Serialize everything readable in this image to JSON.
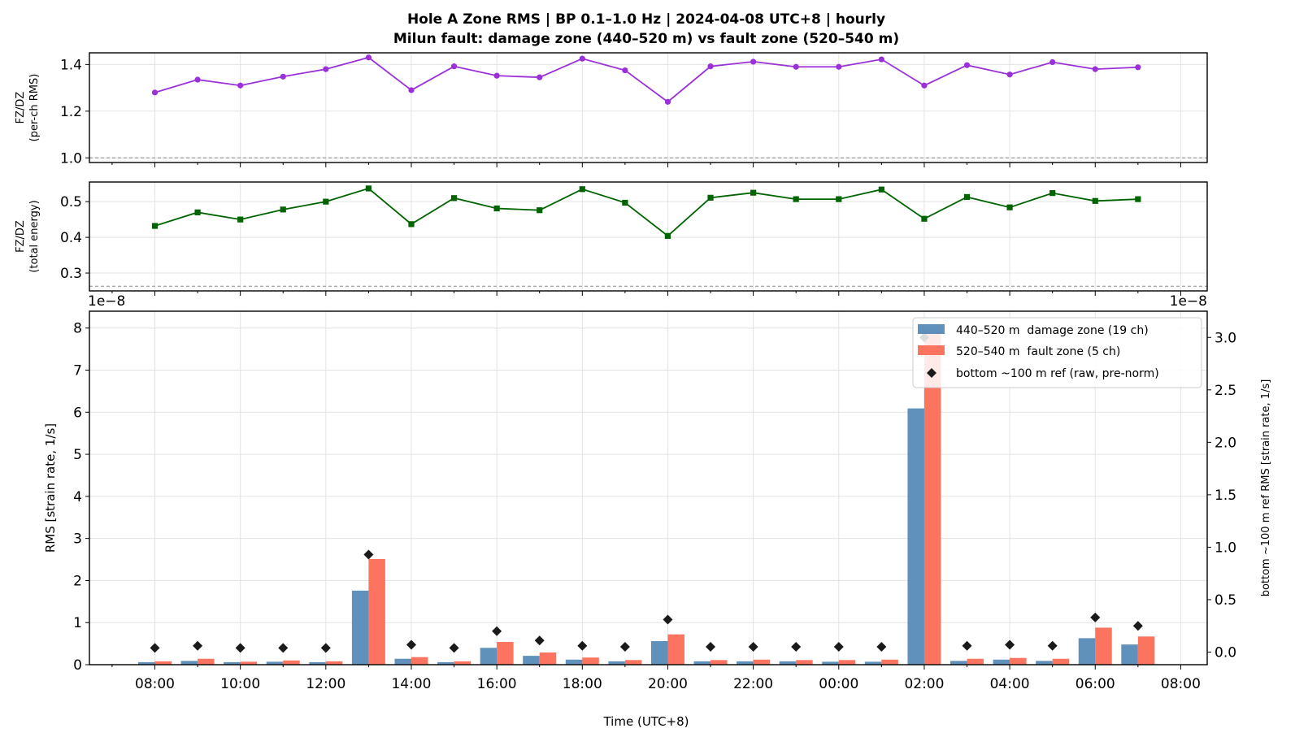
{
  "chart_data": {
    "type": "bar",
    "title_line1": "Hole A Zone RMS  |  BP 0.1–1.0 Hz  |  2024-04-08 UTC+8  |  hourly",
    "title_line2": "Milun fault: damage zone (440–520 m) vs fault zone (520–540 m)",
    "x_categories": [
      "08:00",
      "09:00",
      "10:00",
      "11:00",
      "12:00",
      "13:00",
      "14:00",
      "15:00",
      "16:00",
      "17:00",
      "18:00",
      "19:00",
      "20:00",
      "21:00",
      "22:00",
      "23:00",
      "00:00",
      "01:00",
      "02:00",
      "03:00",
      "04:00",
      "05:00",
      "06:00",
      "07:00"
    ],
    "x_tick_labels": [
      "08:00",
      "10:00",
      "12:00",
      "14:00",
      "16:00",
      "18:00",
      "20:00",
      "22:00",
      "00:00",
      "02:00",
      "04:00",
      "06:00",
      "08:00"
    ],
    "xlabel": "Time (UTC+8)",
    "panels": [
      {
        "type": "line",
        "ylabel_line1": "FZ/DZ",
        "ylabel_line2": "(per-ch RMS)",
        "color": "#9b30d9",
        "marker": "circle",
        "ylim": [
          0.98,
          1.45
        ],
        "yticks": [
          "1.0",
          "1.2",
          "1.4"
        ],
        "reference_line": 1.0,
        "values": [
          1.28,
          1.335,
          1.31,
          1.348,
          1.38,
          1.43,
          1.29,
          1.392,
          1.352,
          1.345,
          1.425,
          1.375,
          1.24,
          1.392,
          1.412,
          1.39,
          1.39,
          1.422,
          1.31,
          1.397,
          1.357,
          1.41,
          1.38,
          1.388
        ]
      },
      {
        "type": "line",
        "ylabel_line1": "FZ/DZ",
        "ylabel_line2": "(total energy)",
        "color": "#006400",
        "marker": "square",
        "ylim": [
          0.25,
          0.555
        ],
        "yticks": [
          "0.3",
          "0.4",
          "0.5"
        ],
        "reference_line": 0.263,
        "values": [
          0.432,
          0.47,
          0.45,
          0.478,
          0.5,
          0.537,
          0.437,
          0.51,
          0.481,
          0.476,
          0.535,
          0.497,
          0.404,
          0.511,
          0.525,
          0.507,
          0.507,
          0.534,
          0.452,
          0.513,
          0.484,
          0.524,
          0.502,
          0.507
        ]
      },
      {
        "type": "bar",
        "ylabel": "RMS  [strain rate, 1/s]",
        "ylabel_right": "bottom ~100 m ref RMS  [strain rate, 1/s]",
        "offset_text_left": "1e−8",
        "offset_text_right": "1e−8",
        "ylim": [
          0,
          8.4
        ],
        "yticks": [
          "0",
          "1",
          "2",
          "3",
          "4",
          "5",
          "6",
          "7",
          "8"
        ],
        "ylim_right": [
          -0.12,
          3.25
        ],
        "yticks_right": [
          "0.0",
          "0.5",
          "1.0",
          "1.5",
          "2.0",
          "2.5",
          "3.0"
        ],
        "series": [
          {
            "name": "440–520 m  damage zone (19 ch)",
            "color": "#4f85b5",
            "values": [
              0.06,
              0.09,
              0.06,
              0.07,
              0.06,
              1.76,
              0.14,
              0.06,
              0.4,
              0.21,
              0.12,
              0.08,
              0.56,
              0.08,
              0.08,
              0.08,
              0.07,
              0.07,
              6.09,
              0.09,
              0.12,
              0.09,
              0.63,
              0.48
            ]
          },
          {
            "name": "520–540 m  fault zone (5 ch)",
            "color": "#fa7460",
            "values": [
              0.08,
              0.14,
              0.07,
              0.1,
              0.08,
              2.51,
              0.18,
              0.08,
              0.54,
              0.29,
              0.17,
              0.11,
              0.72,
              0.11,
              0.12,
              0.11,
              0.11,
              0.12,
              8.0,
              0.14,
              0.16,
              0.14,
              0.88,
              0.67
            ]
          },
          {
            "name": "bottom ~100 m ref (raw, pre-norm)",
            "color": "#1a1a1a",
            "marker": "diamond",
            "axis": "right",
            "values": [
              0.04,
              0.06,
              0.04,
              0.04,
              0.04,
              0.93,
              0.07,
              0.04,
              0.2,
              0.11,
              0.06,
              0.05,
              0.31,
              0.05,
              0.05,
              0.05,
              0.05,
              0.05,
              3.0,
              0.06,
              0.07,
              0.06,
              0.33,
              0.25
            ]
          }
        ],
        "legend_position": "upper-right"
      }
    ]
  }
}
